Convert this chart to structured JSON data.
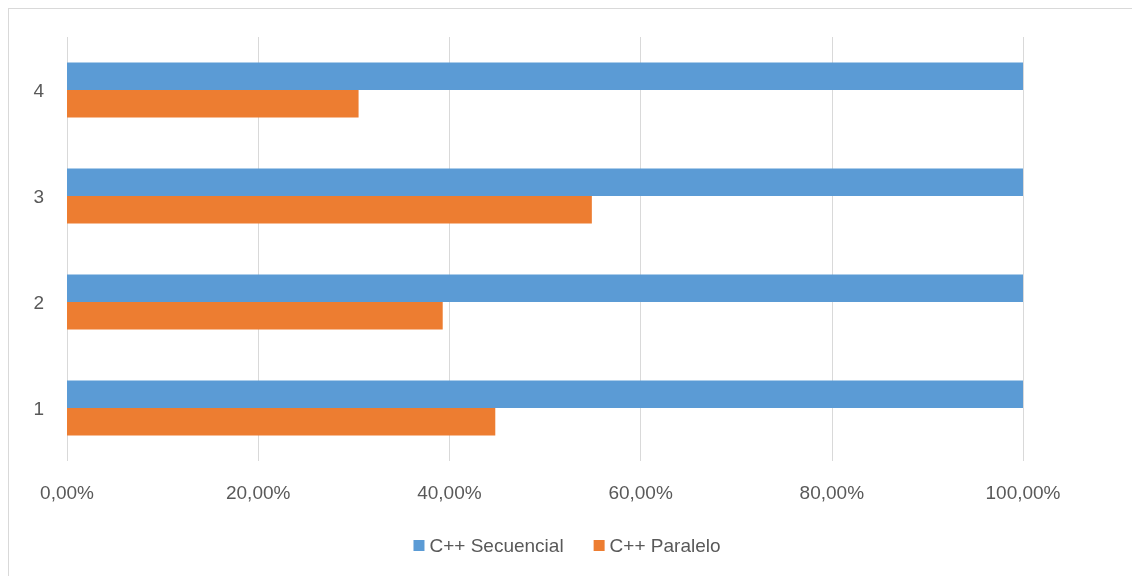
{
  "chart_data": {
    "type": "bar",
    "orientation": "horizontal",
    "categories": [
      "4",
      "3",
      "2",
      "1"
    ],
    "series": [
      {
        "name": "C++ Secuencial",
        "color": "#5b9bd5",
        "values": [
          100,
          100,
          100,
          100
        ]
      },
      {
        "name": "C++ Paralelo",
        "color": "#ed7d31",
        "values": [
          30.5,
          54.9,
          39.3,
          44.8
        ]
      }
    ],
    "xlim": [
      0,
      100
    ],
    "xticks": [
      {
        "value": 0,
        "label": "0,00%"
      },
      {
        "value": 20,
        "label": "20,00%"
      },
      {
        "value": 40,
        "label": "40,00%"
      },
      {
        "value": 60,
        "label": "60,00%"
      },
      {
        "value": 80,
        "label": "80,00%"
      },
      {
        "value": 100,
        "label": "100,00%"
      }
    ],
    "grid": "x",
    "legend": "bottom"
  }
}
